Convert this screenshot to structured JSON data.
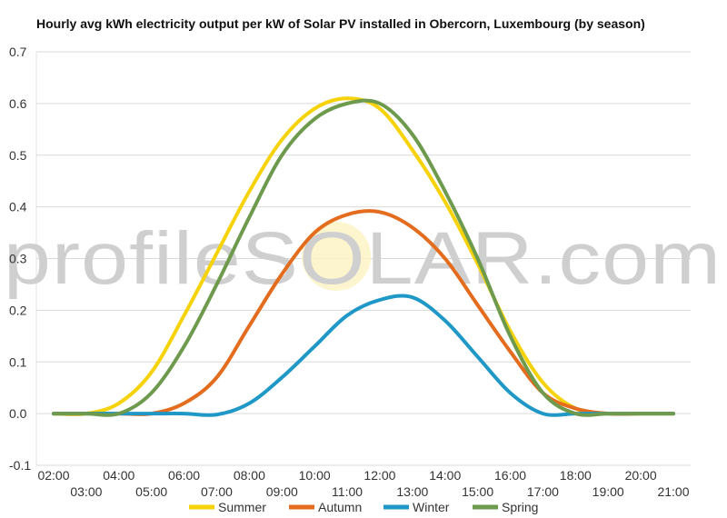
{
  "chart_data": {
    "type": "line",
    "title": "Hourly avg kWh electricity output per kW of Solar PV installed in Obercorn, Luxembourg (by season)",
    "xlabel": "",
    "ylabel": "",
    "x_ticks_upper": [
      "02:00",
      "04:00",
      "06:00",
      "08:00",
      "10:00",
      "12:00",
      "14:00",
      "16:00",
      "18:00",
      "20:00"
    ],
    "x_ticks_lower": [
      "03:00",
      "05:00",
      "07:00",
      "09:00",
      "11:00",
      "13:00",
      "15:00",
      "17:00",
      "19:00",
      "21:00"
    ],
    "xlim": [
      2,
      21
    ],
    "ylim": [
      -0.1,
      0.7
    ],
    "y_ticks": [
      -0.1,
      0.0,
      0.1,
      0.2,
      0.3,
      0.4,
      0.5,
      0.6,
      0.7
    ],
    "y_tick_labels": [
      "-0.1",
      "0.0",
      "0.1",
      "0.2",
      "0.3",
      "0.4",
      "0.5",
      "0.6",
      "0.7"
    ],
    "grid": true,
    "legend_position": "bottom",
    "watermark": "profileSOLAR.com",
    "series": [
      {
        "name": "Summer",
        "color": "#f5d20a",
        "x": [
          2,
          3,
          4,
          5,
          6,
          7,
          8,
          9,
          10,
          11,
          12,
          13,
          14,
          15,
          16,
          17,
          18,
          19,
          20,
          21
        ],
        "values": [
          0.0,
          0.0,
          0.02,
          0.08,
          0.19,
          0.31,
          0.43,
          0.53,
          0.59,
          0.61,
          0.59,
          0.51,
          0.41,
          0.29,
          0.16,
          0.06,
          0.01,
          0.0,
          0.0,
          0.0
        ]
      },
      {
        "name": "Autumn",
        "color": "#e36c1e",
        "x": [
          2,
          3,
          4,
          5,
          6,
          7,
          8,
          9,
          10,
          11,
          12,
          13,
          14,
          15,
          16,
          17,
          18,
          19,
          20,
          21
        ],
        "values": [
          0.0,
          0.0,
          0.0,
          0.0,
          0.02,
          0.07,
          0.17,
          0.27,
          0.35,
          0.385,
          0.39,
          0.36,
          0.3,
          0.21,
          0.12,
          0.04,
          0.01,
          0.0,
          0.0,
          0.0
        ]
      },
      {
        "name": "Winter",
        "color": "#1f98c7",
        "x": [
          2,
          3,
          4,
          5,
          6,
          7,
          8,
          9,
          10,
          11,
          12,
          13,
          14,
          15,
          16,
          17,
          18,
          19,
          20,
          21
        ],
        "values": [
          0.0,
          0.0,
          0.0,
          0.0,
          0.0,
          -0.002,
          0.02,
          0.07,
          0.13,
          0.19,
          0.22,
          0.225,
          0.18,
          0.11,
          0.04,
          0.0,
          0.0,
          0.0,
          0.0,
          0.0
        ]
      },
      {
        "name": "Spring",
        "color": "#6e9a4e",
        "x": [
          2,
          3,
          4,
          5,
          6,
          7,
          8,
          9,
          10,
          11,
          12,
          13,
          14,
          15,
          16,
          17,
          18,
          19,
          20,
          21
        ],
        "values": [
          0.0,
          0.0,
          0.0,
          0.04,
          0.13,
          0.25,
          0.38,
          0.5,
          0.57,
          0.6,
          0.6,
          0.54,
          0.43,
          0.3,
          0.15,
          0.04,
          0.0,
          0.0,
          0.0,
          0.0
        ]
      }
    ]
  }
}
